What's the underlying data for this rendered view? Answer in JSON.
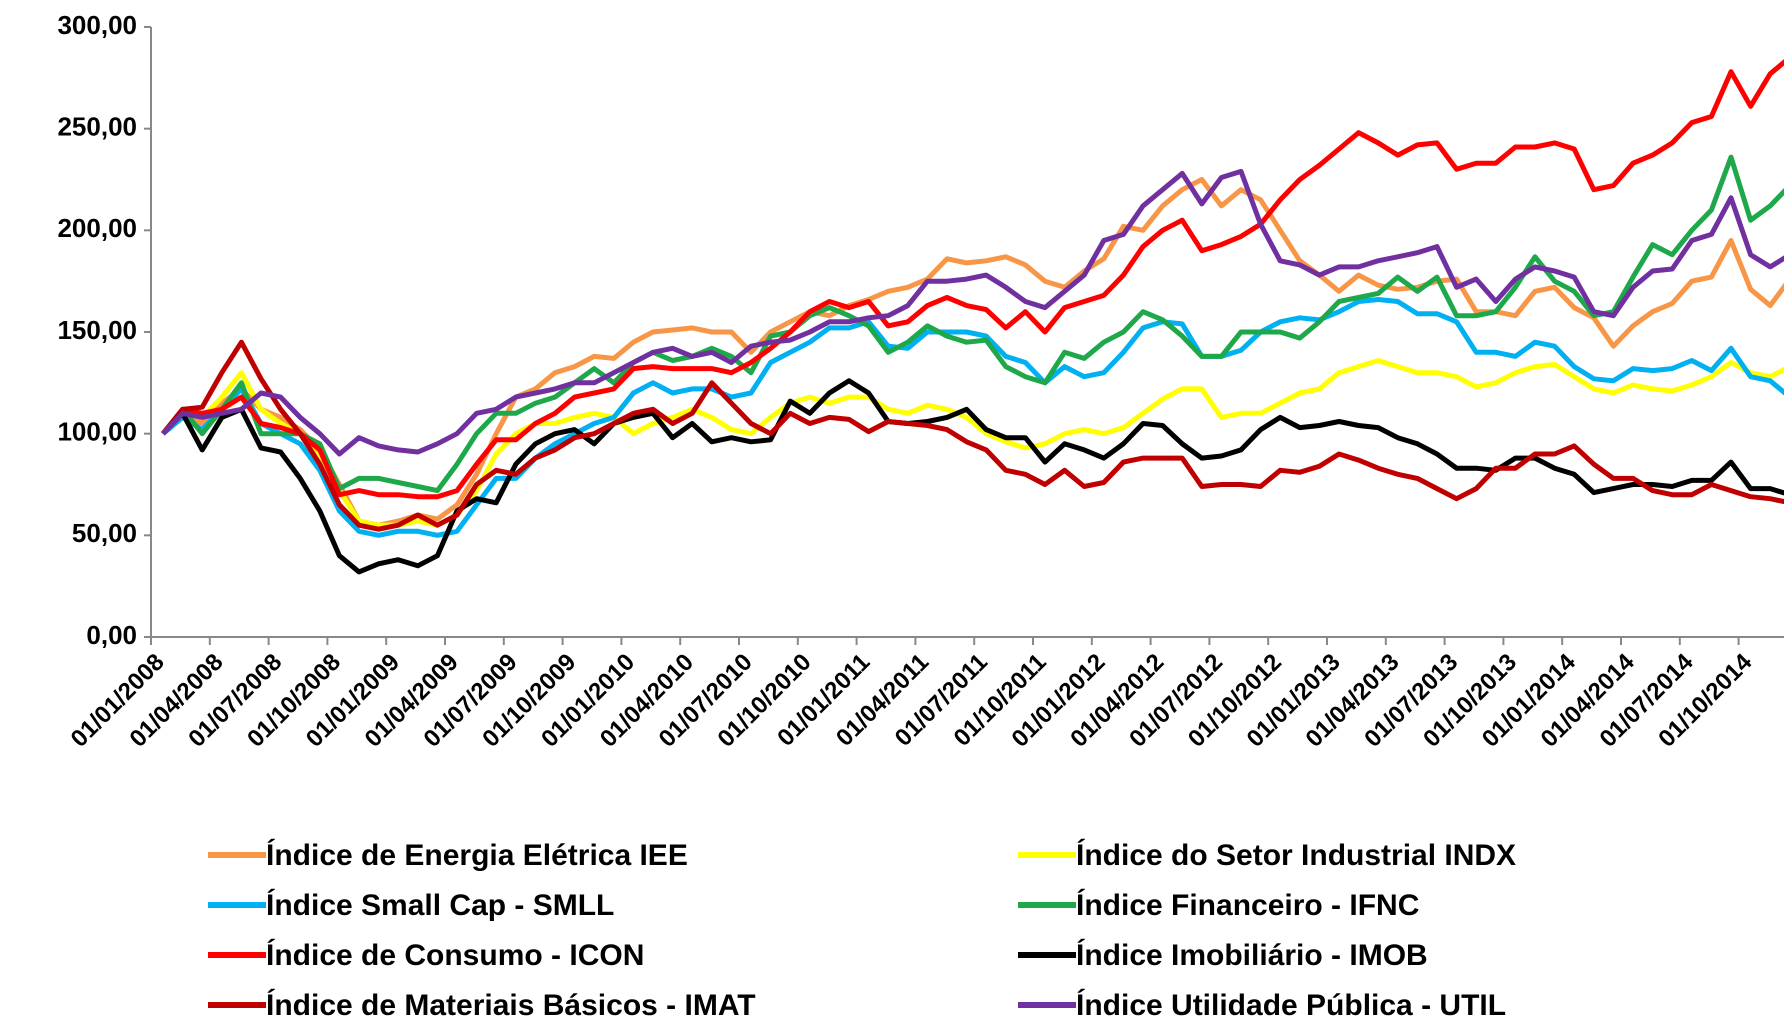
{
  "chart_data": {
    "type": "line",
    "categories": [
      "01/01/2008",
      null,
      null,
      "01/04/2008",
      null,
      null,
      "01/07/2008",
      null,
      null,
      "01/10/2008",
      null,
      null,
      "01/01/2009",
      null,
      null,
      "01/04/2009",
      null,
      null,
      "01/07/2009",
      null,
      null,
      "01/10/2009",
      null,
      null,
      "01/01/2010",
      null,
      null,
      "01/04/2010",
      null,
      null,
      "01/07/2010",
      null,
      null,
      "01/10/2010",
      null,
      null,
      "01/01/2011",
      null,
      null,
      "01/04/2011",
      null,
      null,
      "01/07/2011",
      null,
      null,
      "01/10/2011",
      null,
      null,
      "01/01/2012",
      null,
      null,
      "01/04/2012",
      null,
      null,
      "01/07/2012",
      null,
      null,
      "01/10/2012",
      null,
      null,
      "01/01/2013",
      null,
      null,
      "01/04/2013",
      null,
      null,
      "01/07/2013",
      null,
      null,
      "01/10/2013",
      null,
      null,
      "01/01/2014",
      null,
      null,
      "01/04/2014",
      null,
      null,
      "01/07/2014",
      null,
      null,
      "01/10/2014",
      null,
      null
    ],
    "ylim": [
      0,
      300
    ],
    "yticks": [
      {
        "value": 0,
        "label": "0,00"
      },
      {
        "value": 50,
        "label": "50,00"
      },
      {
        "value": 100,
        "label": "100,00"
      },
      {
        "value": 150,
        "label": "150,00"
      },
      {
        "value": 200,
        "label": "200,00"
      },
      {
        "value": 250,
        "label": "250,00"
      },
      {
        "value": 300,
        "label": "300,00"
      }
    ],
    "grid": false,
    "legend": "bottom",
    "series": [
      {
        "name": "Índice de Energia Elétrica IEE",
        "color": "#f79646",
        "values": [
          100,
          110,
          105,
          115,
          122,
          112,
          108,
          102,
          92,
          75,
          57,
          55,
          57,
          60,
          58,
          65,
          80,
          100,
          118,
          122,
          130,
          133,
          138,
          137,
          145,
          150,
          151,
          152,
          150,
          150,
          140,
          150,
          155,
          160,
          158,
          163,
          166,
          170,
          172,
          176,
          186,
          184,
          185,
          187,
          183,
          175,
          172,
          180,
          186,
          202,
          200,
          212,
          220,
          225,
          212,
          220,
          215,
          200,
          185,
          178,
          170,
          178,
          173,
          171,
          172,
          175,
          176,
          160,
          160,
          158,
          170,
          172,
          162,
          157,
          143,
          153,
          160,
          164,
          175,
          177,
          195,
          171,
          163,
          176
        ]
      },
      {
        "name": "Índice do Setor Industrial INDX",
        "color": "#ffff00",
        "values": [
          100,
          110,
          108,
          118,
          130,
          112,
          105,
          100,
          90,
          72,
          57,
          55,
          55,
          57,
          55,
          60,
          72,
          90,
          100,
          105,
          105,
          108,
          110,
          108,
          100,
          105,
          108,
          112,
          108,
          102,
          100,
          108,
          115,
          118,
          115,
          118,
          118,
          112,
          110,
          114,
          112,
          108,
          100,
          96,
          93,
          95,
          100,
          102,
          100,
          103,
          110,
          117,
          122,
          122,
          108,
          110,
          110,
          115,
          120,
          122,
          130,
          133,
          136,
          133,
          130,
          130,
          128,
          123,
          125,
          130,
          133,
          134,
          128,
          122,
          120,
          124,
          122,
          121,
          124,
          128,
          135,
          130,
          128,
          133
        ]
      },
      {
        "name": "Índice Small Cap - SMLL",
        "color": "#00b0f0",
        "values": [
          100,
          108,
          102,
          112,
          122,
          105,
          100,
          95,
          82,
          62,
          52,
          50,
          52,
          52,
          50,
          52,
          65,
          78,
          78,
          88,
          95,
          100,
          105,
          108,
          120,
          125,
          120,
          122,
          122,
          118,
          120,
          135,
          140,
          145,
          152,
          152,
          155,
          143,
          142,
          150,
          150,
          150,
          148,
          138,
          135,
          125,
          133,
          128,
          130,
          140,
          152,
          155,
          154,
          138,
          138,
          141,
          150,
          155,
          157,
          156,
          160,
          165,
          166,
          165,
          159,
          159,
          155,
          140,
          140,
          138,
          145,
          143,
          133,
          127,
          126,
          132,
          131,
          132,
          136,
          131,
          142,
          128,
          126,
          118
        ]
      },
      {
        "name": "Índice Financeiro - IFNC",
        "color": "#1ea84a",
        "values": [
          100,
          112,
          100,
          112,
          125,
          100,
          100,
          100,
          95,
          73,
          78,
          78,
          76,
          74,
          72,
          85,
          100,
          110,
          110,
          115,
          118,
          125,
          132,
          125,
          135,
          140,
          136,
          138,
          142,
          138,
          130,
          148,
          150,
          158,
          162,
          158,
          153,
          140,
          145,
          153,
          148,
          145,
          146,
          133,
          128,
          125,
          140,
          137,
          145,
          150,
          160,
          156,
          148,
          138,
          138,
          150,
          150,
          150,
          147,
          155,
          165,
          167,
          169,
          177,
          170,
          177,
          158,
          158,
          160,
          172,
          187,
          175,
          170,
          158,
          160,
          177,
          193,
          188,
          200,
          210,
          236,
          205,
          212,
          222
        ]
      },
      {
        "name": "Índice de Consumo - ICON",
        "color": "#ff0000",
        "values": [
          100,
          112,
          110,
          112,
          118,
          105,
          103,
          100,
          92,
          70,
          72,
          70,
          70,
          69,
          69,
          72,
          85,
          97,
          97,
          105,
          110,
          118,
          120,
          122,
          132,
          133,
          132,
          132,
          132,
          130,
          135,
          142,
          150,
          160,
          165,
          162,
          165,
          153,
          155,
          163,
          167,
          163,
          161,
          152,
          160,
          150,
          162,
          165,
          168,
          178,
          192,
          200,
          205,
          190,
          193,
          197,
          203,
          215,
          225,
          232,
          240,
          248,
          243,
          237,
          242,
          243,
          230,
          233,
          233,
          241,
          241,
          243,
          240,
          220,
          222,
          233,
          237,
          243,
          253,
          256,
          278,
          261,
          277,
          285
        ]
      },
      {
        "name": "Índice Imobiliário - IMOB",
        "color": "#000000",
        "values": [
          100,
          110,
          92,
          108,
          112,
          93,
          91,
          78,
          62,
          40,
          32,
          36,
          38,
          35,
          40,
          62,
          68,
          66,
          85,
          95,
          100,
          102,
          95,
          105,
          108,
          110,
          98,
          105,
          96,
          98,
          96,
          97,
          116,
          110,
          120,
          126,
          120,
          106,
          105,
          106,
          108,
          112,
          102,
          98,
          98,
          86,
          95,
          92,
          88,
          95,
          105,
          104,
          95,
          88,
          89,
          92,
          102,
          108,
          103,
          104,
          106,
          104,
          103,
          98,
          95,
          90,
          83,
          83,
          82,
          88,
          88,
          83,
          80,
          71,
          73,
          75,
          75,
          74,
          77,
          77,
          86,
          73,
          73,
          70
        ]
      },
      {
        "name": "Índice de Materiais Básicos - IMAT",
        "color": "#c00000",
        "values": [
          100,
          112,
          113,
          130,
          145,
          127,
          112,
          100,
          85,
          65,
          55,
          53,
          55,
          60,
          55,
          60,
          75,
          82,
          80,
          88,
          92,
          98,
          100,
          105,
          110,
          112,
          105,
          110,
          125,
          115,
          105,
          100,
          110,
          105,
          108,
          107,
          101,
          106,
          105,
          104,
          102,
          96,
          92,
          82,
          80,
          75,
          82,
          74,
          76,
          86,
          88,
          88,
          88,
          74,
          75,
          75,
          74,
          82,
          81,
          84,
          90,
          87,
          83,
          80,
          78,
          73,
          68,
          73,
          83,
          83,
          90,
          90,
          94,
          85,
          78,
          78,
          72,
          70,
          70,
          75,
          72,
          69,
          68,
          66
        ]
      },
      {
        "name": "Índice Utilidade Pública - UTIL",
        "color": "#7030a0",
        "values": [
          100,
          110,
          108,
          110,
          112,
          120,
          118,
          108,
          100,
          90,
          98,
          94,
          92,
          91,
          95,
          100,
          110,
          112,
          118,
          120,
          122,
          125,
          125,
          130,
          135,
          140,
          142,
          138,
          140,
          135,
          143,
          145,
          146,
          150,
          155,
          155,
          157,
          158,
          163,
          175,
          175,
          176,
          178,
          172,
          165,
          162,
          170,
          178,
          195,
          198,
          212,
          220,
          228,
          213,
          226,
          229,
          203,
          185,
          183,
          178,
          182,
          182,
          185,
          187,
          189,
          192,
          172,
          176,
          165,
          176,
          182,
          180,
          177,
          160,
          158,
          172,
          180,
          181,
          195,
          198,
          216,
          188,
          182,
          188
        ]
      }
    ]
  }
}
